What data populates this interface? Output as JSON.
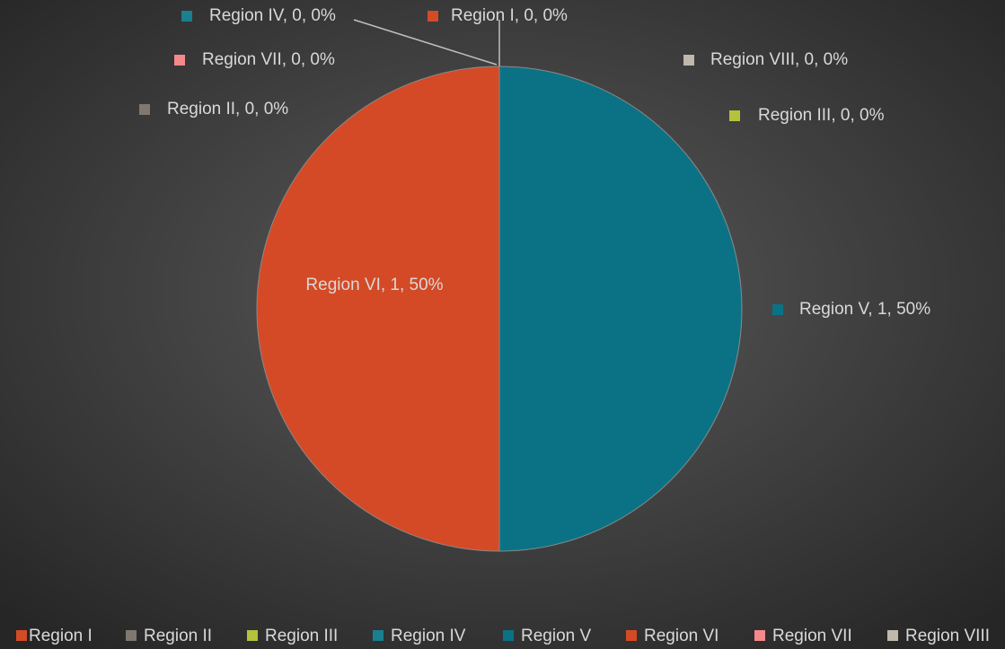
{
  "chart_data": {
    "type": "pie",
    "categories": [
      "Region I",
      "Region II",
      "Region III",
      "Region IV",
      "Region V",
      "Region VI",
      "Region VII",
      "Region VIII"
    ],
    "values": [
      0,
      0,
      0,
      0,
      1,
      1,
      0,
      0
    ],
    "value_labels": [
      "Region I, 0, 0%",
      "Region II, 0, 0%",
      "Region III, 0, 0%",
      "Region IV, 0, 0%",
      "Region V, 1, 50%",
      "Region VI, 1, 50%",
      "Region VII, 0, 0%",
      "Region VIII, 0, 0%"
    ],
    "colors": [
      "#d34b27",
      "#80776f",
      "#b5c23b",
      "#1a7f8e",
      "#0b7285",
      "#d44a26",
      "#f5888a",
      "#bfb8ab"
    ],
    "legend": "bottom"
  }
}
